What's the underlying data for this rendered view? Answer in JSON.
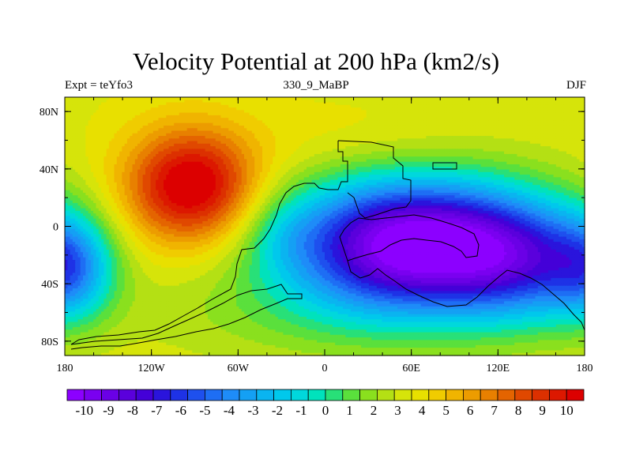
{
  "title": "Velocity Potential at 200 hPa (km2/s)",
  "left_string": "Expt = teYfo3",
  "center_string": "330_9_MaBP",
  "right_string": "DJF",
  "colors": {
    "scale": [
      "#8c00ff",
      "#7a00f0",
      "#6a00e6",
      "#5a00dc",
      "#4400d8",
      "#2a14dc",
      "#1e32e6",
      "#1e50ee",
      "#1e6ef4",
      "#1e8cf8",
      "#14a0f4",
      "#0ab4f0",
      "#00c8ec",
      "#00d8dc",
      "#00e2bc",
      "#28e078",
      "#5ae03c",
      "#8ae01e",
      "#b4e014",
      "#d6e40a",
      "#e8e000",
      "#f0cc00",
      "#f0b400",
      "#ec9c00",
      "#e88000",
      "#e46400",
      "#e04800",
      "#dc3000",
      "#dc1800",
      "#dc0000"
    ]
  },
  "chart_data": {
    "type": "filled-contour-map",
    "variable": "Velocity Potential at 200 hPa",
    "units": "km2/s",
    "season": "DJF",
    "x_ticks": [
      "180",
      "120W",
      "60W",
      "0",
      "60E",
      "120E",
      "180"
    ],
    "y_ticks": [
      "80N",
      "40N",
      "0",
      "40S",
      "80S"
    ],
    "lon_range": [
      -180,
      180
    ],
    "lat_range": [
      -90,
      90
    ],
    "colorbar_labels": [
      "-10",
      "-9",
      "-8",
      "-7",
      "-6",
      "-5",
      "-4",
      "-3",
      "-2",
      "-1",
      "0",
      "1",
      "2",
      "3",
      "4",
      "5",
      "6",
      "7",
      "8",
      "9",
      "10"
    ],
    "contour_min": -10,
    "contour_max": 10,
    "field_features": [
      {
        "kind": "max",
        "lon": -90,
        "lat": 25,
        "value": 10
      },
      {
        "kind": "min",
        "lon": 60,
        "lat": -15,
        "value": -10
      },
      {
        "kind": "min",
        "lon": 125,
        "lat": -25,
        "value": -9
      }
    ]
  }
}
